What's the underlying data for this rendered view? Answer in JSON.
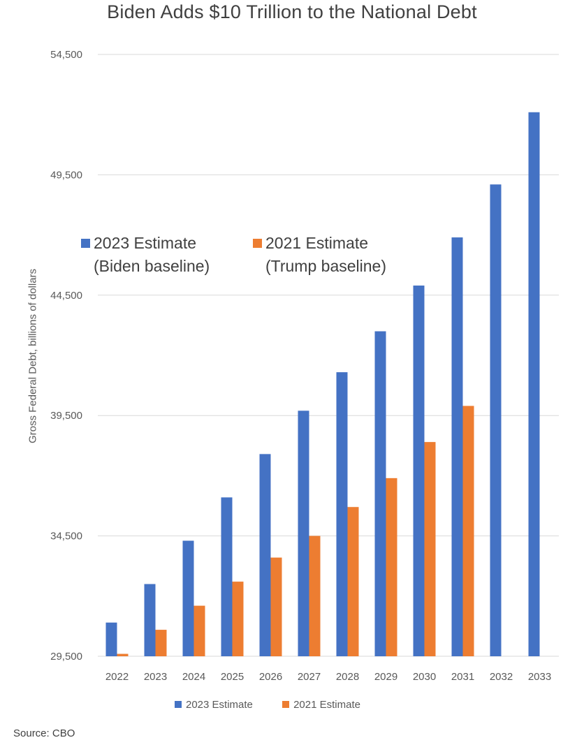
{
  "colors": {
    "series_2023": "#4472c4",
    "series_2021": "#ed7d31",
    "grid": "#d9d9d9"
  },
  "chart_data": {
    "type": "bar",
    "title": "Biden Adds $10 Trillion to the National Debt",
    "ylabel": "Gross Federal Debt, billions of dollars",
    "xlabel": "",
    "ylim": [
      29500,
      54500
    ],
    "yticks": [
      "54,500",
      "49,500",
      "44,500",
      "39,500",
      "34,500",
      "29,500"
    ],
    "ytick_values": [
      54500,
      49500,
      44500,
      39500,
      34500,
      29500
    ],
    "grid": true,
    "categories": [
      "2022",
      "2023",
      "2024",
      "2025",
      "2026",
      "2027",
      "2028",
      "2029",
      "2030",
      "2031",
      "2032",
      "2033"
    ],
    "series": [
      {
        "name": "2023 Estimate",
        "values": [
          30900,
          32500,
          34300,
          36100,
          37900,
          39700,
          41300,
          43000,
          44900,
          46900,
          49100,
          52100
        ]
      },
      {
        "name": "2021 Estimate",
        "values": [
          29600,
          30600,
          31600,
          32600,
          33600,
          34500,
          35700,
          36900,
          38400,
          39900,
          null,
          null
        ]
      }
    ],
    "inner_legend": [
      {
        "line1": "2023 Estimate",
        "line2": "(Biden baseline)"
      },
      {
        "line1": "2021 Estimate",
        "line2": "(Trump baseline)"
      }
    ],
    "legend_position": "bottom",
    "source": "Source: CBO"
  }
}
